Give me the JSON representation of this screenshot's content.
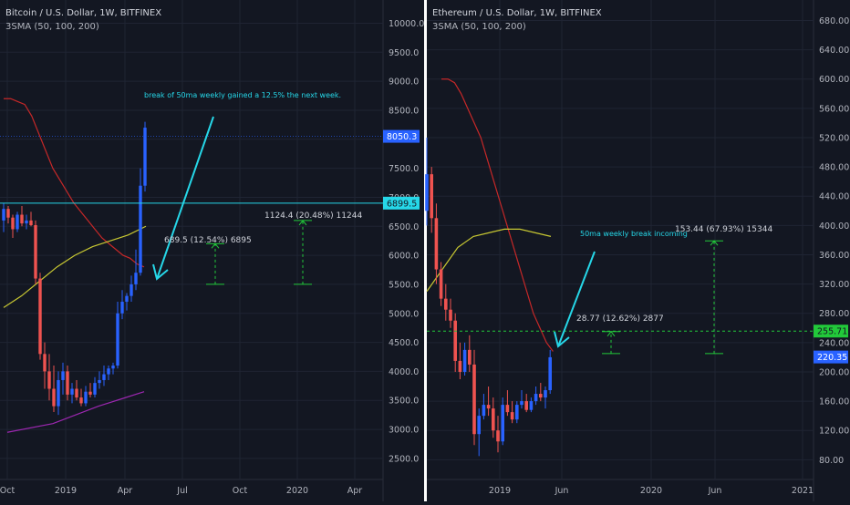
{
  "colors": {
    "background": "#131722",
    "grid": "#1f2433",
    "divider": "#ffffff",
    "up": "#2962ff",
    "down": "#ef5350",
    "sma50": "#c62828",
    "sma100": "#c8c832",
    "sma200": "#9c27b0",
    "arrow": "#26d7e8",
    "measure": "#22c93a",
    "axis_text": "#b2b5be",
    "annotation": "#26d7e8"
  },
  "chart_data": [
    {
      "type": "candlestick",
      "title": "Bitcoin / U.S. Dollar, 1W, BITFINEX",
      "indicator": "3SMA (50, 100, 200)",
      "y_scale": "linear",
      "ylim": [
        2200,
        10400
      ],
      "y_ticks": [
        "2500.0",
        "3000.0",
        "3500.0",
        "4000.0",
        "4500.0",
        "5000.0",
        "5500.0",
        "6000.0",
        "6500.0",
        "7000.0",
        "7500.0",
        "8000.0",
        "8500.0",
        "9000.0",
        "9500.0",
        "10000.0"
      ],
      "x_labels": [
        "Oct",
        "2019",
        "Apr",
        "Jul",
        "Oct",
        "2020",
        "Apr"
      ],
      "ohlc": [
        [
          6600,
          6900,
          6400,
          6800
        ],
        [
          6800,
          6850,
          6550,
          6650
        ],
        [
          6650,
          6700,
          6300,
          6450
        ],
        [
          6450,
          6750,
          6400,
          6700
        ],
        [
          6700,
          6850,
          6500,
          6550
        ],
        [
          6550,
          6700,
          6450,
          6600
        ],
        [
          6600,
          6750,
          6500,
          6520
        ],
        [
          6520,
          6600,
          5500,
          5600
        ],
        [
          5600,
          5700,
          4200,
          4300
        ],
        [
          4300,
          4500,
          3700,
          4000
        ],
        [
          4000,
          4300,
          3500,
          3700
        ],
        [
          3700,
          4100,
          3300,
          3400
        ],
        [
          3400,
          4000,
          3250,
          3850
        ],
        [
          3850,
          4150,
          3600,
          4000
        ],
        [
          4000,
          4100,
          3500,
          3600
        ],
        [
          3600,
          3800,
          3450,
          3700
        ],
        [
          3700,
          3850,
          3500,
          3550
        ],
        [
          3550,
          3700,
          3400,
          3450
        ],
        [
          3450,
          3750,
          3400,
          3650
        ],
        [
          3650,
          3800,
          3550,
          3600
        ],
        [
          3600,
          3900,
          3550,
          3800
        ],
        [
          3800,
          4000,
          3700,
          3850
        ],
        [
          3850,
          4100,
          3750,
          3950
        ],
        [
          3950,
          4100,
          3850,
          4050
        ],
        [
          4050,
          4150,
          3950,
          4100
        ],
        [
          4100,
          5200,
          4050,
          5000
        ],
        [
          5000,
          5400,
          4900,
          5200
        ],
        [
          5200,
          5350,
          5050,
          5300
        ],
        [
          5300,
          5650,
          5200,
          5500
        ],
        [
          5500,
          6100,
          5400,
          5700
        ],
        [
          5700,
          7500,
          5650,
          7200
        ],
        [
          7200,
          8300,
          7100,
          8200
        ]
      ],
      "sma50": [
        8700,
        8700,
        8650,
        8600,
        8400,
        8100,
        7800,
        7500,
        7300,
        7100,
        6900,
        6750,
        6600,
        6450,
        6300,
        6200,
        6100,
        6000,
        5950,
        5850,
        5800
      ],
      "sma100": [
        5100,
        5300,
        5550,
        5800,
        6000,
        6150,
        6250,
        6350,
        6500
      ],
      "sma200": [
        2950,
        3100,
        3400,
        3650
      ],
      "hline": {
        "value": 6899.5,
        "label": "6899.5"
      },
      "last_price": {
        "value": 8050.3,
        "label": "8050.3"
      },
      "annotation": "break of 50ma weekly gained a 12.5% the next week.",
      "measures": [
        {
          "label": "689.5 (12.54%) 6895",
          "from": 5500,
          "to": 6200
        },
        {
          "label": "1124.4 (20.48%) 11244",
          "from": 5500,
          "to": 6600
        }
      ]
    },
    {
      "type": "candlestick",
      "title": "Ethereum / U.S. Dollar, 1W, BITFINEX",
      "indicator": "3SMA (50, 100, 200)",
      "y_scale": "linear",
      "ylim": [
        58,
        708
      ],
      "y_ticks": [
        "80.00",
        "120.00",
        "160.00",
        "200.00",
        "240.00",
        "280.00",
        "320.00",
        "360.00",
        "400.00",
        "440.00",
        "480.00",
        "520.00",
        "560.00",
        "600.00",
        "640.00",
        "680.00"
      ],
      "x_labels": [
        "2019",
        "Jun",
        "2020",
        "Jun",
        "2021"
      ],
      "ohlc": [
        [
          420,
          520,
          400,
          470
        ],
        [
          470,
          480,
          390,
          410
        ],
        [
          410,
          430,
          320,
          340
        ],
        [
          340,
          350,
          290,
          300
        ],
        [
          300,
          320,
          270,
          285
        ],
        [
          285,
          300,
          260,
          270
        ],
        [
          270,
          280,
          200,
          215
        ],
        [
          215,
          240,
          190,
          200
        ],
        [
          200,
          240,
          195,
          230
        ],
        [
          230,
          250,
          200,
          210
        ],
        [
          210,
          230,
          100,
          115
        ],
        [
          115,
          150,
          85,
          140
        ],
        [
          140,
          170,
          135,
          155
        ],
        [
          155,
          180,
          140,
          150
        ],
        [
          150,
          165,
          110,
          120
        ],
        [
          120,
          140,
          90,
          105
        ],
        [
          105,
          165,
          100,
          155
        ],
        [
          155,
          175,
          140,
          145
        ],
        [
          145,
          160,
          130,
          135
        ],
        [
          135,
          160,
          130,
          155
        ],
        [
          155,
          175,
          150,
          160
        ],
        [
          160,
          170,
          145,
          148
        ],
        [
          148,
          165,
          145,
          160
        ],
        [
          160,
          180,
          155,
          170
        ],
        [
          170,
          185,
          160,
          165
        ],
        [
          165,
          180,
          150,
          175
        ],
        [
          175,
          230,
          170,
          220
        ]
      ],
      "sma50": [
        600,
        600,
        595,
        580,
        560,
        540,
        520,
        490,
        460,
        430,
        400,
        370,
        340,
        310,
        280,
        260,
        240,
        228
      ],
      "sma100": [
        310,
        340,
        370,
        385,
        390,
        395,
        395,
        390,
        385
      ],
      "hline": {
        "value": 255.71,
        "label": "255.71"
      },
      "last_price": {
        "value": 220.35,
        "label": "220.35"
      },
      "annotation": "50ma weekly break incoming",
      "measures": [
        {
          "label": "28.77 (12.62%) 2877",
          "from": 225,
          "to": 255
        },
        {
          "label": "153.44 (67.93%) 15344",
          "from": 225,
          "to": 379
        }
      ]
    }
  ]
}
